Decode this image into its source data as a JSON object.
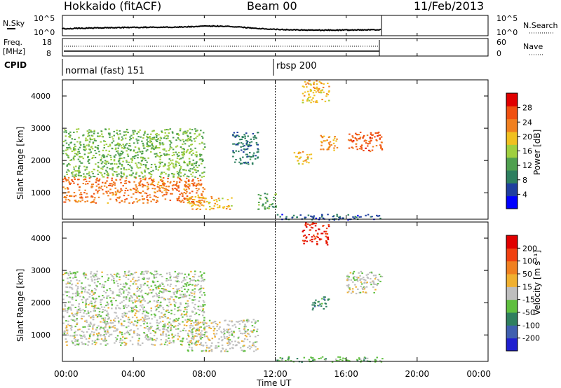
{
  "header": {
    "title_left": "Hokkaido (fitACF)",
    "title_center": "Beam 00",
    "title_right": "11/Feb/2013"
  },
  "labels": {
    "nsky": "N.Sky",
    "nsearch": "N.Search",
    "freq_line1": "Freq.",
    "freq_line2": "[MHz]",
    "nave": "Nave",
    "cpid": "CPID"
  },
  "cpid_segments": [
    {
      "label": "normal (fast) 151",
      "start_hour": 0
    },
    {
      "label": "rbsp 200",
      "start_hour": 12.0
    }
  ],
  "noise_axis": {
    "left_ticks": [
      "10^5",
      "10^0"
    ],
    "right_ticks": [
      "10^5",
      "10^0"
    ]
  },
  "freq_axis": {
    "left_ticks": [
      "18",
      "8"
    ],
    "right_ticks": [
      "60",
      "0"
    ]
  },
  "x_axis": {
    "label": "Time UT",
    "ticks": [
      "00:00",
      "04:00",
      "08:00",
      "12:00",
      "16:00",
      "20:00",
      "00:00"
    ],
    "range_hours": [
      0,
      24
    ],
    "data_end_hour": 18
  },
  "y_axis": {
    "label": "Slant Range [km]",
    "ticks": [
      "1000",
      "2000",
      "3000",
      "4000"
    ],
    "range_km": [
      180,
      4500
    ]
  },
  "power_colorbar": {
    "label": "Power [dB]",
    "ticks": [
      "28",
      "24",
      "20",
      "16",
      "12",
      "8",
      "4"
    ],
    "colors": [
      "#0000ff",
      "#1f3f9f",
      "#2d7f5f",
      "#4fa04f",
      "#9fcf3f",
      "#f0c020",
      "#f08020",
      "#f05010",
      "#e00000"
    ]
  },
  "velocity_colorbar": {
    "label": "Velocity [m s⁻¹]",
    "ticks": [
      "200",
      "100",
      "50",
      "15",
      "-15",
      "-50",
      "-100",
      "-200"
    ],
    "colors": [
      "#1f1fcf",
      "#3f5faf",
      "#2f7f5f",
      "#5fbf3f",
      "#bebebe",
      "#f0b030",
      "#f08020",
      "#f04010",
      "#e00000"
    ]
  },
  "chart_data": [
    {
      "type": "heatmap",
      "name": "Power [dB]",
      "x_unit": "hour UT",
      "y_unit": "km",
      "xlim": [
        0,
        24
      ],
      "ylim": [
        180,
        4500
      ],
      "regions": [
        {
          "x": [
            0,
            8
          ],
          "y": [
            700,
            1500
          ],
          "value": 24
        },
        {
          "x": [
            0,
            8
          ],
          "y": [
            1500,
            3000
          ],
          "value": 14
        },
        {
          "x": [
            7,
            9.5
          ],
          "y": [
            500,
            900
          ],
          "value": 20
        },
        {
          "x": [
            9.5,
            11
          ],
          "y": [
            1900,
            2900
          ],
          "value": 8
        },
        {
          "x": [
            11,
            12
          ],
          "y": [
            500,
            1000
          ],
          "value": 12
        },
        {
          "x": [
            12,
            18
          ],
          "y": [
            180,
            350
          ],
          "value": 6
        },
        {
          "x": [
            13.5,
            15
          ],
          "y": [
            3800,
            4500
          ],
          "value": 20
        },
        {
          "x": [
            13,
            14
          ],
          "y": [
            1900,
            2300
          ],
          "value": 20
        },
        {
          "x": [
            14.5,
            15.5
          ],
          "y": [
            2300,
            2800
          ],
          "value": 22
        },
        {
          "x": [
            16,
            18
          ],
          "y": [
            2300,
            2900
          ],
          "value": 26
        }
      ]
    },
    {
      "type": "heatmap",
      "name": "Velocity [m s-1]",
      "x_unit": "hour UT",
      "y_unit": "km",
      "xlim": [
        0,
        24
      ],
      "ylim": [
        180,
        4500
      ],
      "regions": [
        {
          "x": [
            0,
            8
          ],
          "y": [
            700,
            1600
          ],
          "value": 0
        },
        {
          "x": [
            0,
            8
          ],
          "y": [
            1600,
            3000
          ],
          "value": -10
        },
        {
          "x": [
            7,
            11
          ],
          "y": [
            500,
            1500
          ],
          "value": 0
        },
        {
          "x": [
            12,
            18
          ],
          "y": [
            180,
            350
          ],
          "value": -60
        },
        {
          "x": [
            13.5,
            15
          ],
          "y": [
            3800,
            4500
          ],
          "value": 200
        },
        {
          "x": [
            14,
            15
          ],
          "y": [
            1800,
            2200
          ],
          "value": -100
        },
        {
          "x": [
            16,
            18
          ],
          "y": [
            2300,
            3000
          ],
          "value": 0
        }
      ]
    }
  ]
}
